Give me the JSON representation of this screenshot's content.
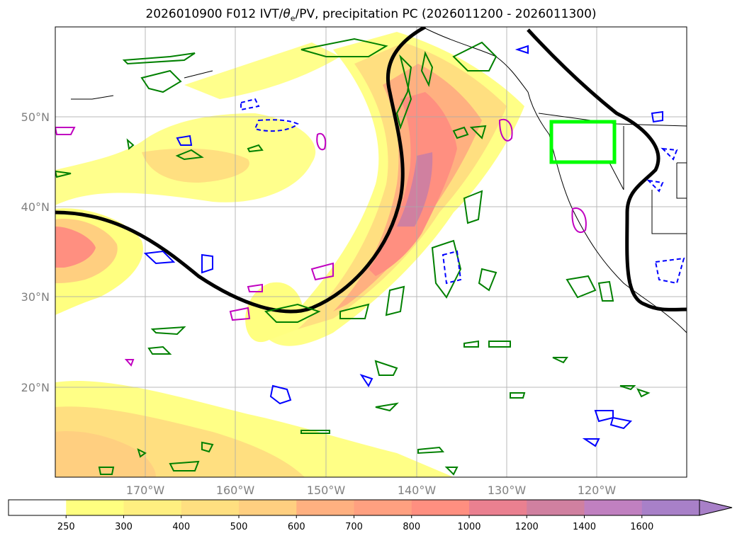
{
  "title": {
    "run": "2026010900 F012 IVT/",
    "theta": "θ",
    "theta_sub": "e",
    "rest": "/PV, precipitation PC (2026011200 - 2026011300)"
  },
  "lat_labels": [
    "50°N",
    "40°N",
    "30°N",
    "20°N"
  ],
  "lon_labels": [
    "170°W",
    "160°W",
    "150°W",
    "140°W",
    "130°W",
    "120°W"
  ],
  "colorbar": {
    "ticks": [
      "250",
      "300",
      "400",
      "500",
      "600",
      "700",
      "800",
      "1000",
      "1200",
      "1400",
      "1600"
    ],
    "colors": [
      "#ffffff",
      "#ffff80",
      "#ffef80",
      "#ffdf80",
      "#ffcf80",
      "#ffb080",
      "#ffa080",
      "#ff8f80",
      "#ea8090",
      "#d080a0",
      "#c080c0",
      "#a880c8"
    ],
    "extend": "max"
  },
  "colors": {
    "theta_e_contour": "#000000",
    "pv_contour_green": "#008000",
    "precip_blue": "#0000ff",
    "precip_magenta": "#c000c0",
    "target_box": "#00ff00"
  }
}
